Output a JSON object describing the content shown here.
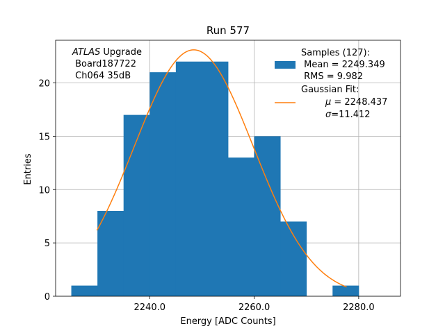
{
  "chart_data": {
    "type": "bar",
    "title": "Run 577",
    "xlabel": "Energy [ADC Counts]",
    "ylabel": "Entries",
    "xlim": [
      2222,
      2288
    ],
    "ylim": [
      0,
      24
    ],
    "xticks": [
      2240,
      2260,
      2280
    ],
    "xtick_labels": [
      "2240.0",
      "2260.0",
      "2280.0"
    ],
    "yticks": [
      0,
      5,
      10,
      15,
      20
    ],
    "ytick_labels": [
      "0",
      "5",
      "10",
      "15",
      "20"
    ],
    "grid": true,
    "legend_placement": "top-right",
    "bin_edges": [
      2225,
      2230,
      2235,
      2240,
      2245,
      2250,
      2255,
      2260,
      2265,
      2270,
      2275,
      2280,
      2285
    ],
    "bin_counts": [
      1,
      8,
      17,
      21,
      22,
      22,
      13,
      15,
      7,
      0,
      1,
      0
    ],
    "fit": {
      "type": "gaussian",
      "x_range": [
        2229.9,
        2277.7
      ],
      "amplitude": 23.1,
      "mu": 2248.437,
      "sigma": 11.412
    },
    "annotation": {
      "line1_italic": "ATLAS",
      "line1_rest": " Upgrade",
      "line2": " Board187722",
      "line3": " Ch064 35dB"
    },
    "legend": {
      "samples_line1": "Samples (127):",
      "samples_line2": " Mean = 2249.349",
      "samples_line3": " RMS = 9.982",
      "fit_line1": "Gaussian Fit:",
      "fit_line2_sym": "μ",
      "fit_line2_rest": " = 2248.437",
      "fit_line3_sym": "σ",
      "fit_line3_rest": "=11.412"
    },
    "colors": {
      "histogram": "#1f77b4",
      "fit": "#ff7f0e"
    }
  }
}
